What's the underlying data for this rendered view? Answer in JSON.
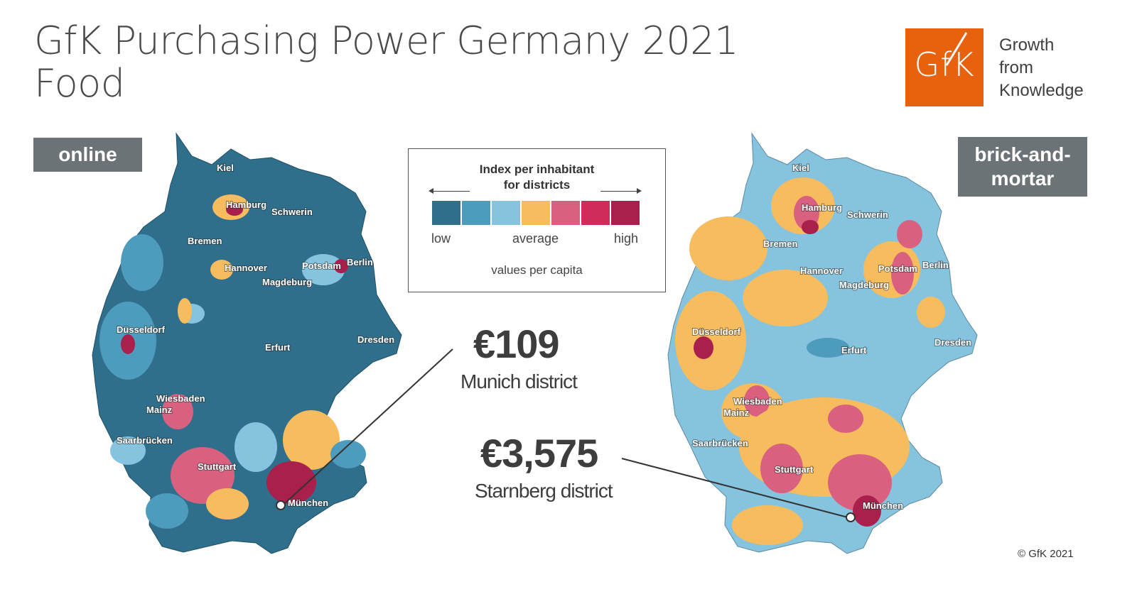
{
  "title": {
    "line1": "GfK Purchasing Power Germany 2021",
    "line2": "Food"
  },
  "logo": {
    "text": "GfK",
    "tagline": [
      "Growth",
      "from",
      "Knowledge"
    ]
  },
  "badges": {
    "online": "online",
    "brick_and_mortar": "brick-and-\nmortar"
  },
  "legend": {
    "title_line1": "Index per inhabitant",
    "title_line2": "for districts",
    "scale_colors": [
      "#2f6f8c",
      "#4d9cbd",
      "#86c3de",
      "#f7bc5d",
      "#d9617f",
      "#d12b5b",
      "#a8204b"
    ],
    "low": "low",
    "average": "average",
    "high": "high",
    "note": "values per capita"
  },
  "callouts": [
    {
      "value": "€109",
      "label": "Munich district"
    },
    {
      "value": "€3,575",
      "label": "Starnberg district"
    }
  ],
  "maps": {
    "online": {
      "cities": [
        "Kiel",
        "Hamburg",
        "Schwerin",
        "Bremen",
        "Hannover",
        "Potsdam",
        "Berlin",
        "Magdeburg",
        "Düsseldorf",
        "Erfurt",
        "Dresden",
        "Wiesbaden",
        "Mainz",
        "Saarbrücken",
        "Stuttgart",
        "München"
      ]
    },
    "brick_and_mortar": {
      "cities": [
        "Kiel",
        "Hamburg",
        "Schwerin",
        "Bremen",
        "Hannover",
        "Potsdam",
        "Berlin",
        "Magdeburg",
        "Düsseldorf",
        "Erfurt",
        "Dresden",
        "Wiesbaden",
        "Mainz",
        "Saarbrücken",
        "Stuttgart",
        "München"
      ]
    }
  },
  "copyright": "© GfK 2021"
}
